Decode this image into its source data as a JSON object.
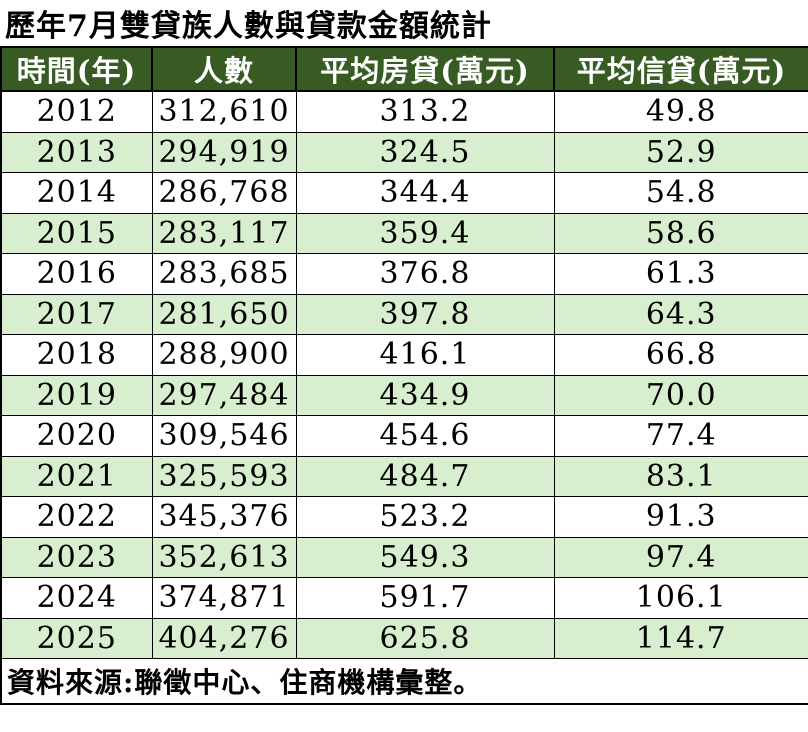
{
  "title": "歷年7月雙貸族人數與貸款金額統計",
  "table": {
    "columns": [
      "時間(年)",
      "人數",
      "平均房貸(萬元)",
      "平均信貸(萬元)"
    ],
    "rows": [
      [
        "2012",
        "312,610",
        "313.2",
        "49.8"
      ],
      [
        "2013",
        "294,919",
        "324.5",
        "52.9"
      ],
      [
        "2014",
        "286,768",
        "344.4",
        "54.8"
      ],
      [
        "2015",
        "283,117",
        "359.4",
        "58.6"
      ],
      [
        "2016",
        "283,685",
        "376.8",
        "61.3"
      ],
      [
        "2017",
        "281,650",
        "397.8",
        "64.3"
      ],
      [
        "2018",
        "288,900",
        "416.1",
        "66.8"
      ],
      [
        "2019",
        "297,484",
        "434.9",
        "70.0"
      ],
      [
        "2020",
        "309,546",
        "454.6",
        "77.4"
      ],
      [
        "2021",
        "325,593",
        "484.7",
        "83.1"
      ],
      [
        "2022",
        "345,376",
        "523.2",
        "91.3"
      ],
      [
        "2023",
        "352,613",
        "549.3",
        "97.4"
      ],
      [
        "2024",
        "374,871",
        "591.7",
        "106.1"
      ],
      [
        "2025",
        "404,276",
        "625.8",
        "114.7"
      ]
    ]
  },
  "source": "資料來源:聯徵中心、住商機構彙整。",
  "colors": {
    "header_background": "#375B22",
    "header_text": "#FFFFFF",
    "row_alternate_background": "#D8EFCF",
    "row_background": "#FFFFFF",
    "grid_border": "#000000",
    "title_text": "#000000"
  },
  "chart_data": {
    "type": "table",
    "title": "歷年7月雙貸族人數與貸款金額統計",
    "columns": [
      "時間(年)",
      "人數",
      "平均房貸(萬元)",
      "平均信貸(萬元)"
    ],
    "categories": [
      "2012",
      "2013",
      "2014",
      "2015",
      "2016",
      "2017",
      "2018",
      "2019",
      "2020",
      "2021",
      "2022",
      "2023",
      "2024",
      "2025"
    ],
    "series": [
      {
        "name": "人數",
        "values": [
          312610,
          294919,
          286768,
          283117,
          283685,
          281650,
          288900,
          297484,
          309546,
          325593,
          345376,
          352613,
          374871,
          404276
        ]
      },
      {
        "name": "平均房貸(萬元)",
        "values": [
          313.2,
          324.5,
          344.4,
          359.4,
          376.8,
          397.8,
          416.1,
          434.9,
          454.6,
          484.7,
          523.2,
          549.3,
          591.7,
          625.8
        ]
      },
      {
        "name": "平均信貸(萬元)",
        "values": [
          49.8,
          52.9,
          54.8,
          58.6,
          61.3,
          64.3,
          66.8,
          70.0,
          77.4,
          83.1,
          91.3,
          97.4,
          106.1,
          114.7
        ]
      }
    ],
    "source_note": "資料來源:聯徵中心、住商機構彙整。"
  }
}
